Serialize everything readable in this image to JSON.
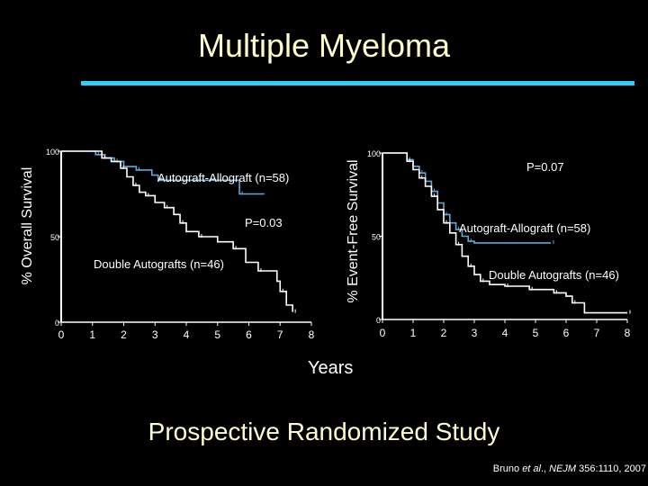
{
  "slide": {
    "title": "Multiple Myeloma",
    "accent_rule_color": "#33ccff",
    "title_color": "#ffffcc",
    "xlabel": "Years",
    "subtitle": "Prospective Randomized Study",
    "citation": {
      "prefix": "Bruno ",
      "etal": "et al",
      "mid": "., ",
      "journal": "NEJM",
      "suffix": " 356:1110, 2007"
    }
  },
  "chart_data": [
    {
      "type": "line",
      "step": true,
      "ylabel": "% Overall Survival",
      "xlabel": "Years",
      "xlim": [
        0,
        8
      ],
      "ylim": [
        0,
        100
      ],
      "xticks": [
        "0",
        "1",
        "2",
        "3",
        "4",
        "5",
        "6",
        "7",
        "8"
      ],
      "yticks": [
        "0",
        "50",
        "100"
      ],
      "annotation": "P=0.03",
      "series": [
        {
          "name": "Autograft-Allograft (n=58)",
          "color": "#5fa8d8",
          "points": [
            [
              0,
              100
            ],
            [
              1.0,
              100
            ],
            [
              1.1,
              98
            ],
            [
              1.4,
              96
            ],
            [
              1.7,
              94
            ],
            [
              2.0,
              91
            ],
            [
              2.4,
              89
            ],
            [
              2.9,
              86
            ],
            [
              3.1,
              83
            ],
            [
              5.6,
              83
            ],
            [
              5.7,
              75
            ],
            [
              6.5,
              75
            ]
          ]
        },
        {
          "name": "Double Autografts (n=46)",
          "color": "#ffffff",
          "points": [
            [
              0,
              100
            ],
            [
              1.0,
              100
            ],
            [
              1.3,
              96
            ],
            [
              1.6,
              94
            ],
            [
              1.9,
              90
            ],
            [
              2.1,
              85
            ],
            [
              2.3,
              80
            ],
            [
              2.5,
              76
            ],
            [
              2.7,
              74
            ],
            [
              3.0,
              70
            ],
            [
              3.3,
              67
            ],
            [
              3.6,
              63
            ],
            [
              3.8,
              58
            ],
            [
              4.0,
              53
            ],
            [
              4.4,
              50
            ],
            [
              5.0,
              47
            ],
            [
              5.5,
              43
            ],
            [
              5.9,
              35
            ],
            [
              6.3,
              30
            ],
            [
              6.9,
              24
            ],
            [
              7.0,
              18
            ],
            [
              7.2,
              10
            ],
            [
              7.4,
              6
            ]
          ]
        }
      ]
    },
    {
      "type": "line",
      "step": true,
      "ylabel": "% Event-Free Survival",
      "xlabel": "Years",
      "xlim": [
        0,
        8
      ],
      "ylim": [
        0,
        100
      ],
      "xticks": [
        "0",
        "1",
        "2",
        "3",
        "4",
        "5",
        "6",
        "7",
        "8"
      ],
      "yticks": [
        "0",
        "50",
        "100"
      ],
      "annotation": "P=0.07",
      "series": [
        {
          "name": "Autograft-Allograft (n=58)",
          "color": "#5fa8d8",
          "points": [
            [
              0,
              100
            ],
            [
              0.6,
              100
            ],
            [
              0.8,
              96
            ],
            [
              1.0,
              92
            ],
            [
              1.2,
              88
            ],
            [
              1.4,
              83
            ],
            [
              1.6,
              77
            ],
            [
              1.8,
              70
            ],
            [
              2.0,
              63
            ],
            [
              2.2,
              58
            ],
            [
              2.4,
              54
            ],
            [
              2.6,
              50
            ],
            [
              2.8,
              47
            ],
            [
              3.0,
              46
            ],
            [
              5.5,
              46
            ]
          ]
        },
        {
          "name": "Double Autografts (n=46)",
          "color": "#ffffff",
          "points": [
            [
              0,
              100
            ],
            [
              0.6,
              100
            ],
            [
              0.8,
              95
            ],
            [
              1.0,
              90
            ],
            [
              1.2,
              85
            ],
            [
              1.4,
              80
            ],
            [
              1.6,
              74
            ],
            [
              1.8,
              66
            ],
            [
              2.0,
              58
            ],
            [
              2.2,
              52
            ],
            [
              2.4,
              45
            ],
            [
              2.6,
              38
            ],
            [
              2.8,
              32
            ],
            [
              3.0,
              27
            ],
            [
              3.2,
              23
            ],
            [
              3.5,
              21
            ],
            [
              4.0,
              20
            ],
            [
              4.6,
              20
            ],
            [
              4.8,
              18
            ],
            [
              5.4,
              18
            ],
            [
              5.6,
              16
            ],
            [
              6.0,
              14
            ],
            [
              6.2,
              10
            ],
            [
              6.6,
              4
            ],
            [
              8.0,
              4
            ]
          ]
        }
      ]
    }
  ]
}
